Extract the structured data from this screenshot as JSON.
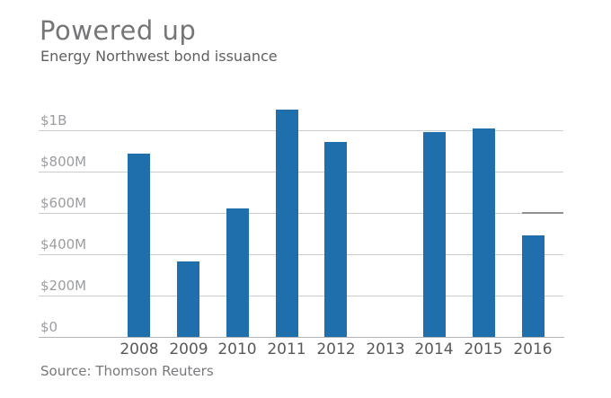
{
  "header": {
    "title": "Powered up",
    "subtitle": "Energy Northwest bond issuance"
  },
  "footer": {
    "source": "Source: Thomson Reuters"
  },
  "chart_data": {
    "type": "bar",
    "title": "Powered up",
    "subtitle": "Energy Northwest bond issuance",
    "source": "Source: Thomson Reuters",
    "categories": [
      "2008",
      "2009",
      "2010",
      "2011",
      "2012",
      "2013",
      "2014",
      "2015",
      "2016"
    ],
    "values": [
      885,
      365,
      620,
      1100,
      945,
      0,
      990,
      1010,
      490
    ],
    "value_unit_labels": "values in millions of US dollars, read from $-denominated axis",
    "yticks": [
      {
        "value": 0,
        "label": "$0"
      },
      {
        "value": 200,
        "label": "$200M"
      },
      {
        "value": 400,
        "label": "$400M"
      },
      {
        "value": 600,
        "label": "$600M"
      },
      {
        "value": 800,
        "label": "$800M"
      },
      {
        "value": 1000,
        "label": "$1B"
      }
    ],
    "ylim": [
      0,
      1150
    ],
    "grid": true,
    "legend": false,
    "xlabel": "",
    "ylabel": "",
    "annotations": [
      {
        "type": "dark-gridline-segment",
        "y_value": 600,
        "above_category": "2016",
        "note": "short darker segment of the $600M gridline over the 2016 column"
      }
    ]
  },
  "colors": {
    "bar": "#1f6fad",
    "gridline": "#cbcccd",
    "zero_axis_line": "#b3b5b7",
    "dark_segment": "#8e9092",
    "title_text": "#757678",
    "subtitle_text": "#5f6062",
    "x_tick_text": "#58595b",
    "y_tick_text": "#9b9da0",
    "source_text": "#78797c",
    "background": "#ffffff"
  }
}
